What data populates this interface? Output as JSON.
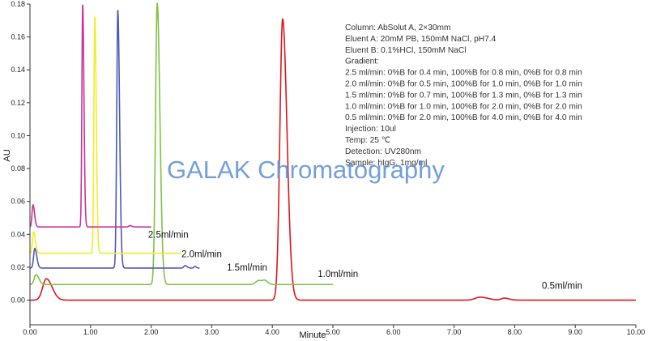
{
  "chart_data": {
    "type": "line",
    "xlabel": "Minute",
    "ylabel": "AU",
    "xlim": [
      0,
      10
    ],
    "ylim": [
      -0.015,
      0.18
    ],
    "x_ticks": [
      "0.00",
      "1.00",
      "2.00",
      "3.00",
      "4.00",
      "5.00",
      "6.00",
      "7.00",
      "8.00",
      "9.00",
      "10.00"
    ],
    "y_ticks": [
      "0.00",
      "0.02",
      "0.04",
      "0.06",
      "0.08",
      "0.10",
      "0.12",
      "0.14",
      "0.16",
      "0.18"
    ],
    "grid": false,
    "series": [
      {
        "name": "0.5ml/min",
        "color": "#e0141e",
        "x_end": 10.0,
        "baseline": 0.0,
        "peaks": [
          {
            "x": 0.27,
            "height": 0.013,
            "width": 0.06
          },
          {
            "x": 4.17,
            "height": 0.171,
            "width": 0.045
          },
          {
            "x": 7.43,
            "height": 0.0018,
            "width": 0.08
          },
          {
            "x": 7.83,
            "height": 0.0012,
            "width": 0.05
          }
        ]
      },
      {
        "name": "1.0ml/min",
        "color": "#7fc241",
        "x_end": 5.0,
        "baseline": 0.0095,
        "peaks": [
          {
            "x": 0.1,
            "height": 0.006,
            "width": 0.03
          },
          {
            "x": 2.1,
            "height": 0.171,
            "width": 0.028
          },
          {
            "x": 3.78,
            "height": 0.0025,
            "width": 0.05
          },
          {
            "x": 3.88,
            "height": 0.0015,
            "width": 0.03
          }
        ]
      },
      {
        "name": "1.5ml/min",
        "color": "#5059b5",
        "x_end": 2.8,
        "baseline": 0.0195,
        "peaks": [
          {
            "x": 0.08,
            "height": 0.012,
            "width": 0.02
          },
          {
            "x": 1.45,
            "height": 0.157,
            "width": 0.018
          },
          {
            "x": 2.56,
            "height": 0.0015,
            "width": 0.02
          },
          {
            "x": 2.72,
            "height": 0.001,
            "width": 0.015
          }
        ]
      },
      {
        "name": "2.0ml/min",
        "color": "#f2ec2c",
        "x_end": 2.5,
        "baseline": 0.0285,
        "peaks": [
          {
            "x": 0.06,
            "height": 0.013,
            "width": 0.018
          },
          {
            "x": 1.07,
            "height": 0.144,
            "width": 0.015
          }
        ]
      },
      {
        "name": "2.5ml/min",
        "color": "#c8339a",
        "x_end": 2.0,
        "baseline": 0.0445,
        "peaks": [
          {
            "x": 0.05,
            "height": 0.0135,
            "width": 0.016
          },
          {
            "x": 0.87,
            "height": 0.1355,
            "width": 0.013
          },
          {
            "x": 1.65,
            "height": 0.0008,
            "width": 0.02
          }
        ]
      }
    ],
    "annotations": [
      {
        "text": "2.5ml/min",
        "x": 1.95,
        "y": 0.038
      },
      {
        "text": "2.0ml/min",
        "x": 2.5,
        "y": 0.026
      },
      {
        "text": "1.5ml/min",
        "x": 3.25,
        "y": 0.018
      },
      {
        "text": "1.0ml/min",
        "x": 4.75,
        "y": 0.014
      },
      {
        "text": "0.5ml/min",
        "x": 8.45,
        "y": 0.007
      }
    ]
  },
  "info_box": [
    "Column: AbSolut A, 2×30mm",
    "Eluent A: 20mM PB, 150mM NaCl, pH7.4",
    "Eluent B: 0.1%HCl, 150mM NaCl",
    "Gradient:",
    "2.5 ml/min: 0%B for 0.4 min, 100%B for 0.8 min, 0%B for 0.8 min",
    "2.0 ml/min: 0%B for 0.5 min, 100%B for 1.0 min, 0%B for 1.0 min",
    "1.5 ml/min: 0%B for 0.7 min, 100%B for 1.3 min, 0%B for 1.3 min",
    "1.0 ml/min: 0%B for 1.0 min, 100%B for 2.0 min, 0%B for 2.0 min",
    "0.5 ml/min: 0%B for 2.0 min, 100%B for 4.0 min, 0%B for 4.0 min",
    "Injection: 10ul",
    "Temp: 25 ℃",
    "Detection: UV280nm",
    "Sample: hIgG, 1mg/ml"
  ],
  "watermark": "GALAK Chromatography"
}
